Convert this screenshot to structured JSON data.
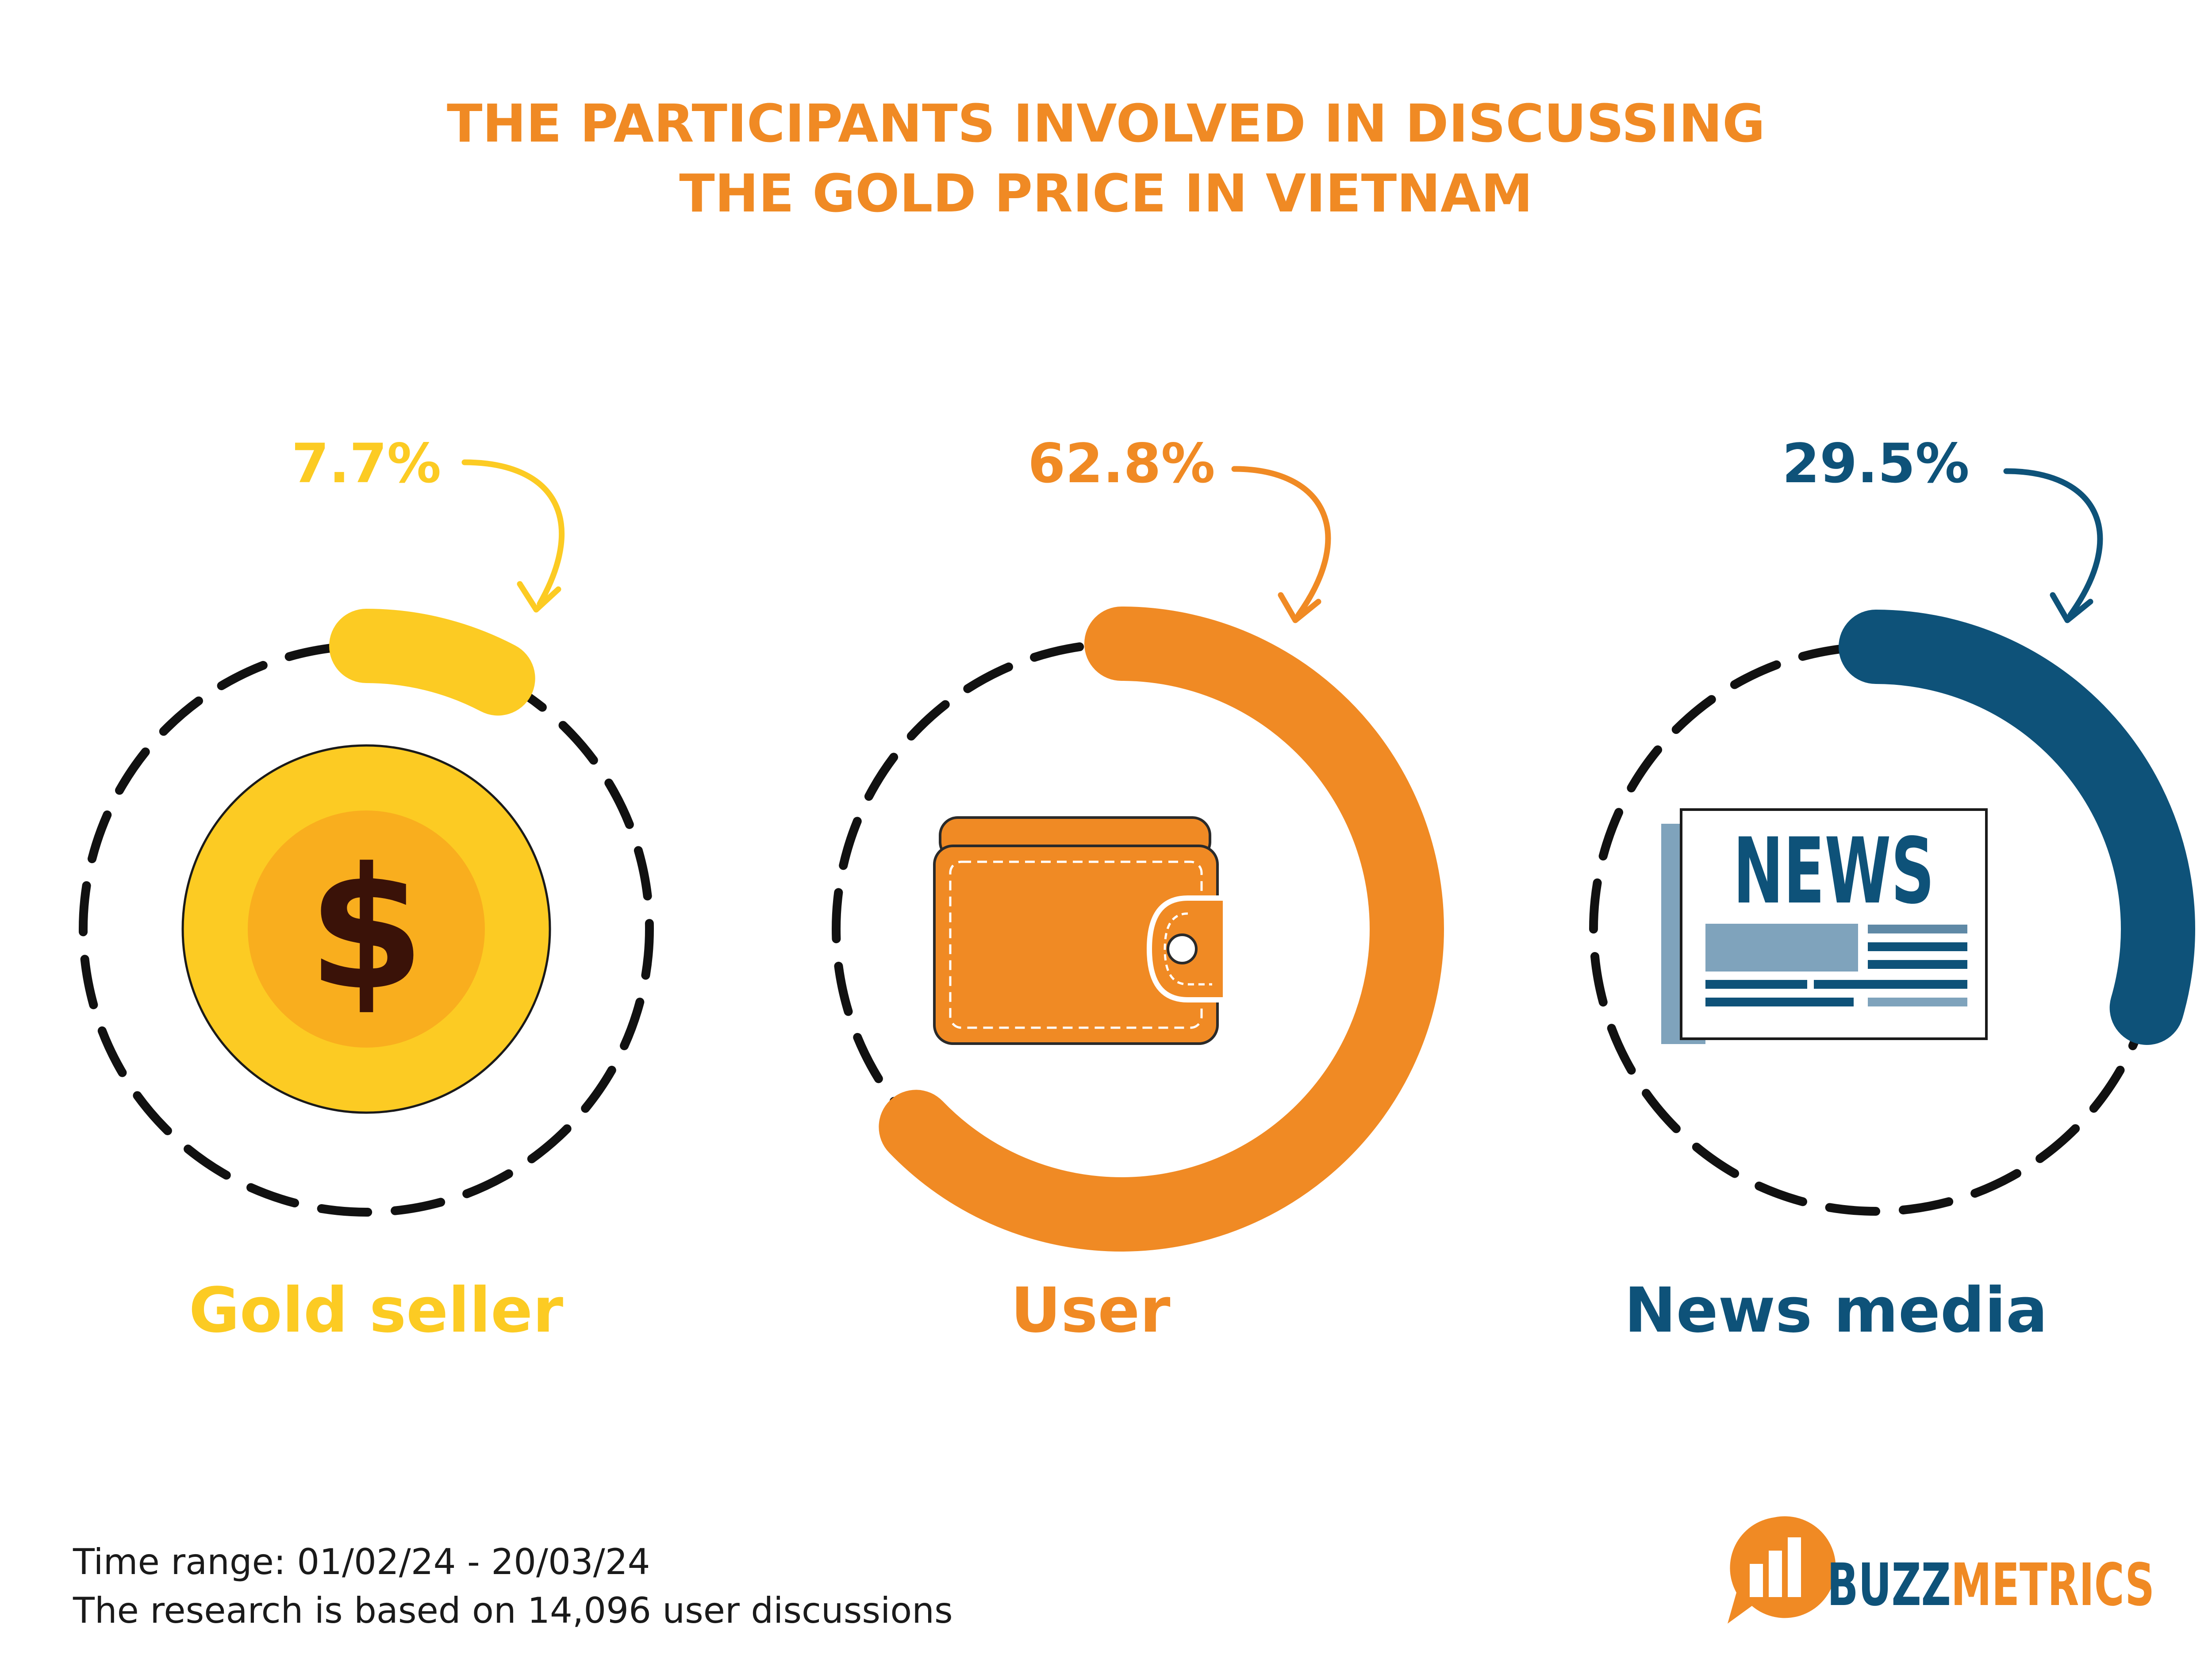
{
  "title": {
    "line1": "THE PARTICIPANTS INVOLVED IN DISCUSSING",
    "line2": "THE GOLD PRICE IN VIETNAM"
  },
  "colors": {
    "title": "#F08A24",
    "gold": "#FCCB23",
    "user": "#F08A24",
    "news": "#0E5279",
    "dash": "#111111",
    "footer_text": "#1A1A1A"
  },
  "chart_data": {
    "type": "donut",
    "title": "THE PARTICIPANTS INVOLVED IN DISCUSSING THE GOLD PRICE IN VIETNAM",
    "unit": "%",
    "segments": [
      {
        "name": "Gold seller",
        "label": "7.7%",
        "value": 7.7,
        "color": "#FCCB23",
        "icon": "dollar-coin-icon"
      },
      {
        "name": "User",
        "label": "62.8%",
        "value": 62.8,
        "color": "#F08A24",
        "icon": "wallet-icon"
      },
      {
        "name": "News media",
        "label": "29.5%",
        "value": 29.5,
        "color": "#0E5279",
        "icon": "newspaper-icon"
      }
    ]
  },
  "icons": {
    "coin_symbol": "$",
    "news_word": "NEWS"
  },
  "footer": {
    "time_range": "Time range: 01/02/24 - 20/03/24",
    "research": "The research is based on 14,096 user discussions"
  },
  "logo": {
    "part1": "BUZZ",
    "part2": "METRICS",
    "color1": "#0E5279",
    "color2": "#F08A24"
  }
}
